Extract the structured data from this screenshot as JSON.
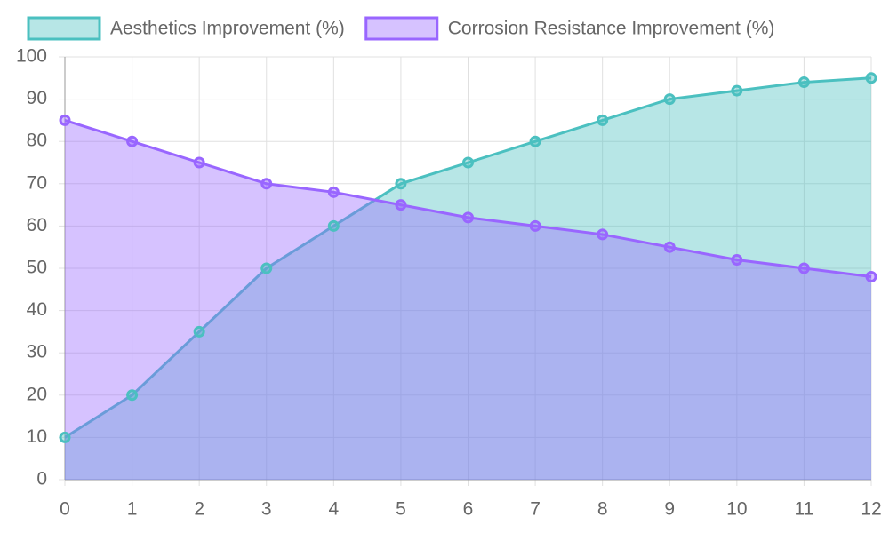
{
  "chart_data": {
    "type": "area",
    "x": [
      0,
      1,
      2,
      3,
      4,
      5,
      6,
      7,
      8,
      9,
      10,
      11,
      12
    ],
    "xlim": [
      0,
      12
    ],
    "xticks": [
      0,
      1,
      2,
      3,
      4,
      5,
      6,
      7,
      8,
      9,
      10,
      11,
      12
    ],
    "ylim": [
      0,
      100
    ],
    "yticks": [
      0,
      10,
      20,
      30,
      40,
      50,
      60,
      70,
      80,
      90,
      100
    ],
    "grid": true,
    "legend": "top",
    "series": [
      {
        "name": "Aesthetics Improvement (%)",
        "color": "#4bc0c0",
        "values": [
          10,
          20,
          35,
          50,
          60,
          70,
          75,
          80,
          85,
          90,
          92,
          94,
          95
        ]
      },
      {
        "name": "Corrosion Resistance Improvement (%)",
        "color": "#9966ff",
        "values": [
          85,
          80,
          75,
          70,
          68,
          65,
          62,
          60,
          58,
          55,
          52,
          50,
          48
        ]
      }
    ]
  }
}
